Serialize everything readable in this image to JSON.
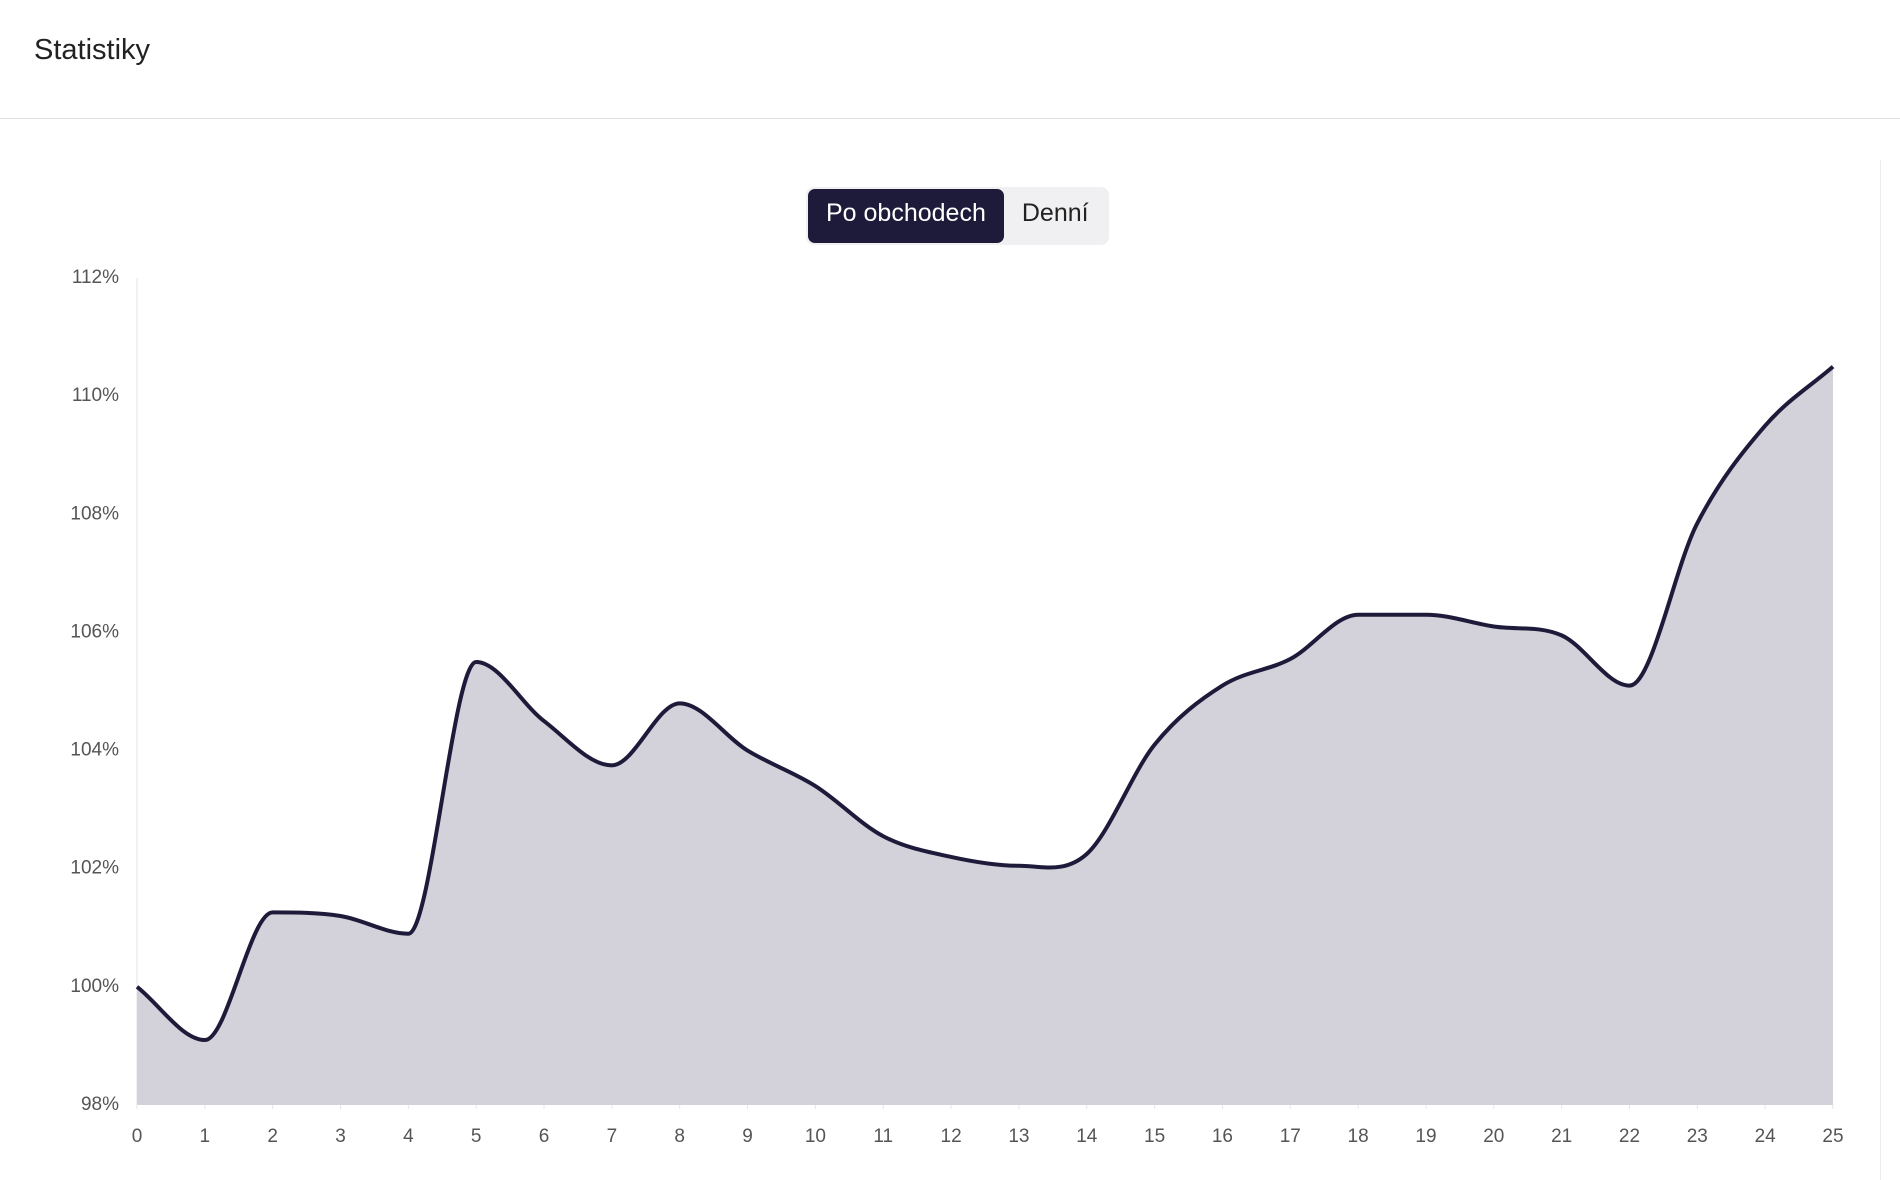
{
  "header": {
    "title": "Statistiky"
  },
  "toggle": {
    "options": [
      "Po obchodech",
      "Denní"
    ],
    "active": 0
  },
  "chart_data": {
    "type": "area",
    "x": [
      0,
      1,
      2,
      3,
      4,
      5,
      6,
      7,
      8,
      9,
      10,
      11,
      12,
      13,
      14,
      15,
      16,
      17,
      18,
      19,
      20,
      21,
      22,
      23,
      24,
      25
    ],
    "series": [
      {
        "color": "#1e1b3a",
        "fill": "#d3d2da",
        "values": [
          100.0,
          99.1,
          101.26,
          101.2,
          100.9,
          105.5,
          104.5,
          103.75,
          104.8,
          104.0,
          103.4,
          102.55,
          102.2,
          102.05,
          102.25,
          104.1,
          105.1,
          105.55,
          106.3,
          106.3,
          106.1,
          105.95,
          105.1,
          107.85,
          109.5,
          110.5
        ]
      }
    ],
    "xlim": [
      0,
      25
    ],
    "xticks": [
      0,
      1,
      2,
      3,
      4,
      5,
      6,
      7,
      8,
      9,
      10,
      11,
      12,
      13,
      14,
      15,
      16,
      17,
      18,
      19,
      20,
      21,
      22,
      23,
      24,
      25
    ],
    "ylim": [
      98,
      112
    ],
    "yticks": [
      {
        "value": 98,
        "label": "98%"
      },
      {
        "value": 100,
        "label": "100%"
      },
      {
        "value": 102,
        "label": "102%"
      },
      {
        "value": 104,
        "label": "104%"
      },
      {
        "value": 106,
        "label": "106%"
      },
      {
        "value": 108,
        "label": "108%"
      },
      {
        "value": 110,
        "label": "110%"
      },
      {
        "value": 112,
        "label": "112%"
      }
    ],
    "grid": false
  }
}
